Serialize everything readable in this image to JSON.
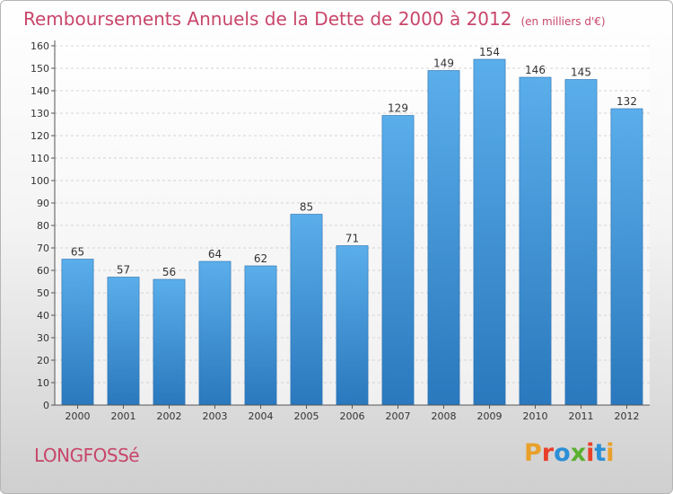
{
  "title": "Remboursements Annuels de la Dette de 2000 à 2012",
  "subtitle": "(en milliers d'€)",
  "city": "LONGFOSSé",
  "logo": {
    "letters": [
      "P",
      "r",
      "o",
      "x",
      "i",
      "t",
      "i"
    ],
    "colors": [
      "#e8a02a",
      "#e8402a",
      "#2b8fd6",
      "#5bb030",
      "#e8402a",
      "#2b8fd6",
      "#e8a02a"
    ]
  },
  "colors": {
    "bar_top": "#5aaeea",
    "bar_bottom": "#2a78bd",
    "accent": "#c8466a"
  },
  "chart_data": {
    "type": "bar",
    "categories": [
      "2000",
      "2001",
      "2002",
      "2003",
      "2004",
      "2005",
      "2006",
      "2007",
      "2008",
      "2009",
      "2010",
      "2011",
      "2012"
    ],
    "values": [
      65,
      57,
      56,
      64,
      62,
      85,
      71,
      129,
      149,
      154,
      146,
      145,
      132
    ],
    "title": "Remboursements Annuels de la Dette de 2000 à 2012",
    "xlabel": "",
    "ylabel": "",
    "ylim": [
      0,
      160
    ],
    "yticks": [
      0,
      10,
      20,
      30,
      40,
      50,
      60,
      70,
      80,
      90,
      100,
      110,
      120,
      130,
      140,
      150,
      160
    ],
    "grid": true,
    "legend": "none"
  }
}
